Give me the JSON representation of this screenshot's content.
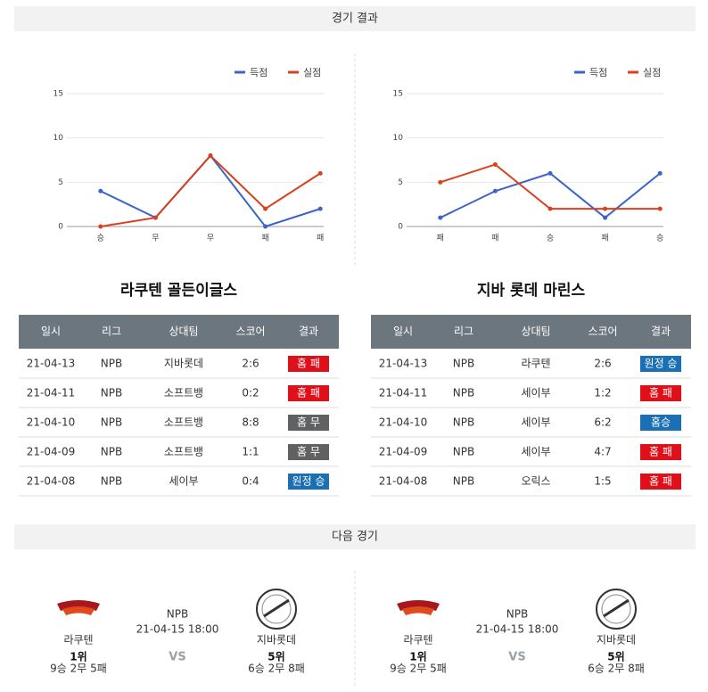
{
  "header": {
    "results_title": "경기 결과",
    "next_title": "다음 경기"
  },
  "chart_data": [
    {
      "type": "line",
      "categories": [
        "승",
        "무",
        "무",
        "패",
        "패"
      ],
      "series": [
        {
          "name": "득점",
          "color": "#3b64c8",
          "values": [
            4,
            1,
            8,
            0,
            2
          ]
        },
        {
          "name": "실점",
          "color": "#d9401e",
          "values": [
            0,
            1,
            8,
            2,
            6
          ]
        }
      ],
      "ylim": [
        0,
        15
      ],
      "yticks": [
        0,
        5,
        10,
        15
      ],
      "grid": true,
      "legend": "top-right"
    },
    {
      "type": "line",
      "categories": [
        "패",
        "패",
        "승",
        "패",
        "승"
      ],
      "series": [
        {
          "name": "득점",
          "color": "#3b64c8",
          "values": [
            1,
            4,
            6,
            1,
            6
          ]
        },
        {
          "name": "실점",
          "color": "#d9401e",
          "values": [
            5,
            7,
            2,
            2,
            2
          ]
        }
      ],
      "ylim": [
        0,
        15
      ],
      "yticks": [
        0,
        5,
        10,
        15
      ],
      "grid": true,
      "legend": "top-right"
    }
  ],
  "tables": [
    {
      "title": "라쿠텐 골든이글스",
      "columns": [
        "일시",
        "리그",
        "상대팀",
        "스코어",
        "결과"
      ],
      "rows": [
        [
          "21-04-13",
          "NPB",
          "지바롯데",
          "2:6",
          {
            "label": "홈 패",
            "color": "#e0101a"
          }
        ],
        [
          "21-04-11",
          "NPB",
          "소프트뱅",
          "0:2",
          {
            "label": "홈 패",
            "color": "#e0101a"
          }
        ],
        [
          "21-04-10",
          "NPB",
          "소프트뱅",
          "8:8",
          {
            "label": "홈 무",
            "color": "#5f6163"
          }
        ],
        [
          "21-04-09",
          "NPB",
          "소프트뱅",
          "1:1",
          {
            "label": "홈 무",
            "color": "#5f6163"
          }
        ],
        [
          "21-04-08",
          "NPB",
          "세이부",
          "0:4",
          {
            "label": "원정 승",
            "color": "#1a6fb5"
          }
        ]
      ]
    },
    {
      "title": "지바 롯데 마린스",
      "columns": [
        "일시",
        "리그",
        "상대팀",
        "스코어",
        "결과"
      ],
      "rows": [
        [
          "21-04-13",
          "NPB",
          "라쿠텐",
          "2:6",
          {
            "label": "원정 승",
            "color": "#1a6fb5"
          }
        ],
        [
          "21-04-11",
          "NPB",
          "세이부",
          "1:2",
          {
            "label": "홈 패",
            "color": "#e0101a"
          }
        ],
        [
          "21-04-10",
          "NPB",
          "세이부",
          "6:2",
          {
            "label": "홈승",
            "color": "#1a6fb5"
          }
        ],
        [
          "21-04-09",
          "NPB",
          "세이부",
          "4:7",
          {
            "label": "홈 패",
            "color": "#e0101a"
          }
        ],
        [
          "21-04-08",
          "NPB",
          "오릭스",
          "1:5",
          {
            "label": "홈 패",
            "color": "#e0101a"
          }
        ]
      ]
    }
  ],
  "next_games": [
    {
      "league": "NPB",
      "datetime": "21-04-15 18:00",
      "vs": "VS",
      "home": {
        "name": "라쿠텐",
        "rank": "1위",
        "record": "9승 2무 5패"
      },
      "away": {
        "name": "지바롯데",
        "rank": "5위",
        "record": "6승 2무 8패"
      }
    },
    {
      "league": "NPB",
      "datetime": "21-04-15 18:00",
      "vs": "VS",
      "home": {
        "name": "라쿠텐",
        "rank": "1위",
        "record": "9승 2무 5패"
      },
      "away": {
        "name": "지바롯데",
        "rank": "5위",
        "record": "6승 2무 8패"
      }
    }
  ]
}
